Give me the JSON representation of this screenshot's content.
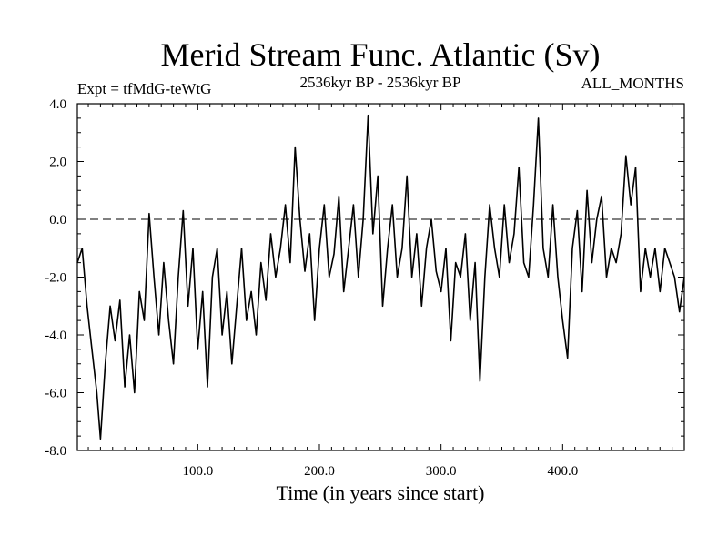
{
  "chart_data": {
    "type": "line",
    "title": "Merid Stream Func. Atlantic (Sv)",
    "subtitle_left": "Expt = tfMdG-teWtG",
    "subtitle_center": "2536kyr BP - 2536kyr BP",
    "subtitle_right": "ALL_MONTHS",
    "xlabel": "Time (in years since start)",
    "ylabel": "",
    "xlim": [
      1,
      500
    ],
    "ylim": [
      -8.0,
      4.0
    ],
    "x_ticks": [
      100,
      200,
      300,
      400
    ],
    "x_tick_labels": [
      "100.0",
      "200.0",
      "300.0",
      "400.0"
    ],
    "y_ticks": [
      -8,
      -6,
      -4,
      -2,
      0,
      2,
      4
    ],
    "y_tick_labels": [
      "-8.0",
      "-6.0",
      "-4.0",
      "-2.0",
      "0.0",
      "2.0",
      "4.0"
    ],
    "reference_line": {
      "y": 0.0,
      "style": "dashed"
    },
    "series": [
      {
        "name": "Merid Stream Func. Atlantic",
        "color": "#000000",
        "x": [
          1,
          5,
          9,
          13,
          17,
          20,
          24,
          28,
          32,
          36,
          40,
          44,
          48,
          52,
          56,
          60,
          64,
          68,
          72,
          76,
          80,
          84,
          88,
          92,
          96,
          100,
          104,
          108,
          112,
          116,
          120,
          124,
          128,
          132,
          136,
          140,
          144,
          148,
          152,
          156,
          160,
          164,
          168,
          172,
          176,
          180,
          184,
          188,
          192,
          196,
          200,
          204,
          208,
          212,
          216,
          220,
          224,
          228,
          232,
          236,
          240,
          244,
          248,
          252,
          256,
          260,
          264,
          268,
          272,
          276,
          280,
          284,
          288,
          292,
          296,
          300,
          304,
          308,
          312,
          316,
          320,
          324,
          328,
          332,
          336,
          340,
          344,
          348,
          352,
          356,
          360,
          364,
          368,
          372,
          376,
          380,
          384,
          388,
          392,
          396,
          400,
          404,
          408,
          412,
          416,
          420,
          424,
          428,
          432,
          436,
          440,
          444,
          448,
          452,
          456,
          460,
          464,
          468,
          472,
          476,
          480,
          484,
          488,
          492,
          496,
          500
        ],
        "values": [
          -1.5,
          -1.0,
          -3.0,
          -4.5,
          -6.0,
          -7.6,
          -5.0,
          -3.0,
          -4.2,
          -2.8,
          -5.8,
          -4.0,
          -6.0,
          -2.5,
          -3.5,
          0.2,
          -2.0,
          -4.0,
          -1.5,
          -3.5,
          -5.0,
          -2.0,
          0.3,
          -3.0,
          -1.0,
          -4.5,
          -2.5,
          -5.8,
          -2.0,
          -1.0,
          -4.0,
          -2.5,
          -5.0,
          -3.0,
          -1.0,
          -3.5,
          -2.5,
          -4.0,
          -1.5,
          -2.8,
          -0.5,
          -2.0,
          -1.0,
          0.5,
          -1.5,
          2.5,
          0.0,
          -1.8,
          -0.5,
          -3.5,
          -1.0,
          0.5,
          -2.0,
          -1.2,
          0.8,
          -2.5,
          -1.0,
          0.5,
          -2.0,
          0.0,
          3.6,
          -0.5,
          1.5,
          -3.0,
          -1.0,
          0.5,
          -2.0,
          -1.0,
          1.5,
          -2.0,
          -0.5,
          -3.0,
          -1.0,
          0.0,
          -1.8,
          -2.5,
          -1.0,
          -4.2,
          -1.5,
          -2.0,
          -0.5,
          -3.5,
          -1.5,
          -5.6,
          -2.0,
          0.5,
          -1.0,
          -2.0,
          0.5,
          -1.5,
          -0.5,
          1.8,
          -1.5,
          -2.0,
          0.5,
          3.5,
          -1.0,
          -2.0,
          0.5,
          -2.0,
          -3.5,
          -4.8,
          -1.0,
          0.3,
          -2.5,
          1.0,
          -1.5,
          0.0,
          0.8,
          -2.0,
          -1.0,
          -1.5,
          -0.5,
          2.2,
          0.5,
          1.8,
          -2.5,
          -1.0,
          -2.0,
          -1.0,
          -2.5,
          -1.0,
          -1.5,
          -2.0,
          -3.2,
          -2.0
        ]
      }
    ]
  }
}
